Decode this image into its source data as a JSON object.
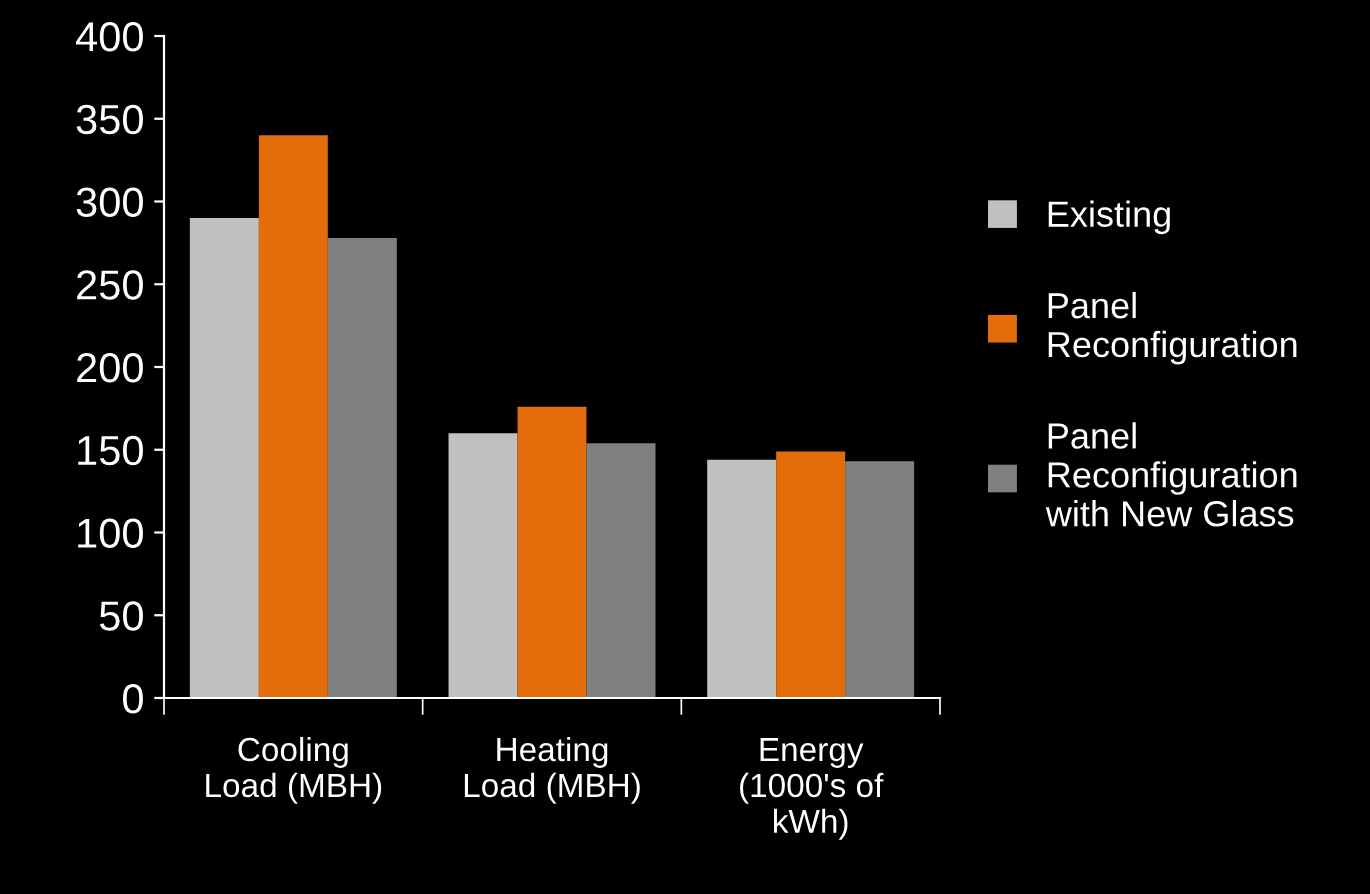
{
  "chart_data": {
    "type": "bar",
    "categories": [
      "Cooling Load (MBH)",
      "Heating Load (MBH)",
      "Energy (1000's of kWh)"
    ],
    "series": [
      {
        "name": "Existing",
        "color": "#c0c0c0",
        "values": [
          290,
          160,
          144
        ]
      },
      {
        "name": "Panel Reconfiguration",
        "color": "#e46c0a",
        "values": [
          340,
          176,
          149
        ]
      },
      {
        "name": "Panel Reconfiguration with New Glass",
        "color": "#808080",
        "values": [
          278,
          154,
          143
        ]
      }
    ],
    "ylim": [
      0,
      400
    ],
    "yticks": [
      0,
      50,
      100,
      150,
      200,
      250,
      300,
      350,
      400
    ],
    "grid": false,
    "legend": "right"
  }
}
